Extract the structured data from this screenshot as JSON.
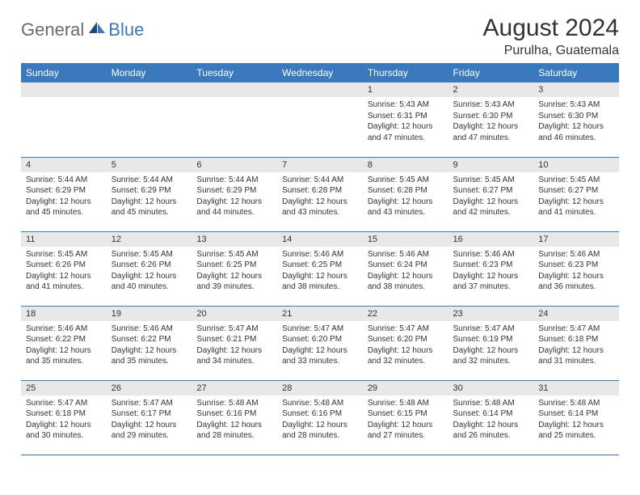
{
  "logo": {
    "text1": "General",
    "text2": "Blue"
  },
  "title": "August 2024",
  "location": "Purulha, Guatemala",
  "colors": {
    "header_bg": "#3a7abc",
    "band_bg": "#e8e8e8",
    "border": "#3a7abc",
    "text": "#333333",
    "logo_gray": "#6b6b6b"
  },
  "weekdays": [
    "Sunday",
    "Monday",
    "Tuesday",
    "Wednesday",
    "Thursday",
    "Friday",
    "Saturday"
  ],
  "weeks": [
    [
      {
        "empty": true
      },
      {
        "empty": true
      },
      {
        "empty": true
      },
      {
        "empty": true
      },
      {
        "day": "1",
        "sunrise": "Sunrise: 5:43 AM",
        "sunset": "Sunset: 6:31 PM",
        "daylight": "Daylight: 12 hours and 47 minutes."
      },
      {
        "day": "2",
        "sunrise": "Sunrise: 5:43 AM",
        "sunset": "Sunset: 6:30 PM",
        "daylight": "Daylight: 12 hours and 47 minutes."
      },
      {
        "day": "3",
        "sunrise": "Sunrise: 5:43 AM",
        "sunset": "Sunset: 6:30 PM",
        "daylight": "Daylight: 12 hours and 46 minutes."
      }
    ],
    [
      {
        "day": "4",
        "sunrise": "Sunrise: 5:44 AM",
        "sunset": "Sunset: 6:29 PM",
        "daylight": "Daylight: 12 hours and 45 minutes."
      },
      {
        "day": "5",
        "sunrise": "Sunrise: 5:44 AM",
        "sunset": "Sunset: 6:29 PM",
        "daylight": "Daylight: 12 hours and 45 minutes."
      },
      {
        "day": "6",
        "sunrise": "Sunrise: 5:44 AM",
        "sunset": "Sunset: 6:29 PM",
        "daylight": "Daylight: 12 hours and 44 minutes."
      },
      {
        "day": "7",
        "sunrise": "Sunrise: 5:44 AM",
        "sunset": "Sunset: 6:28 PM",
        "daylight": "Daylight: 12 hours and 43 minutes."
      },
      {
        "day": "8",
        "sunrise": "Sunrise: 5:45 AM",
        "sunset": "Sunset: 6:28 PM",
        "daylight": "Daylight: 12 hours and 43 minutes."
      },
      {
        "day": "9",
        "sunrise": "Sunrise: 5:45 AM",
        "sunset": "Sunset: 6:27 PM",
        "daylight": "Daylight: 12 hours and 42 minutes."
      },
      {
        "day": "10",
        "sunrise": "Sunrise: 5:45 AM",
        "sunset": "Sunset: 6:27 PM",
        "daylight": "Daylight: 12 hours and 41 minutes."
      }
    ],
    [
      {
        "day": "11",
        "sunrise": "Sunrise: 5:45 AM",
        "sunset": "Sunset: 6:26 PM",
        "daylight": "Daylight: 12 hours and 41 minutes."
      },
      {
        "day": "12",
        "sunrise": "Sunrise: 5:45 AM",
        "sunset": "Sunset: 6:26 PM",
        "daylight": "Daylight: 12 hours and 40 minutes."
      },
      {
        "day": "13",
        "sunrise": "Sunrise: 5:45 AM",
        "sunset": "Sunset: 6:25 PM",
        "daylight": "Daylight: 12 hours and 39 minutes."
      },
      {
        "day": "14",
        "sunrise": "Sunrise: 5:46 AM",
        "sunset": "Sunset: 6:25 PM",
        "daylight": "Daylight: 12 hours and 38 minutes."
      },
      {
        "day": "15",
        "sunrise": "Sunrise: 5:46 AM",
        "sunset": "Sunset: 6:24 PM",
        "daylight": "Daylight: 12 hours and 38 minutes."
      },
      {
        "day": "16",
        "sunrise": "Sunrise: 5:46 AM",
        "sunset": "Sunset: 6:23 PM",
        "daylight": "Daylight: 12 hours and 37 minutes."
      },
      {
        "day": "17",
        "sunrise": "Sunrise: 5:46 AM",
        "sunset": "Sunset: 6:23 PM",
        "daylight": "Daylight: 12 hours and 36 minutes."
      }
    ],
    [
      {
        "day": "18",
        "sunrise": "Sunrise: 5:46 AM",
        "sunset": "Sunset: 6:22 PM",
        "daylight": "Daylight: 12 hours and 35 minutes."
      },
      {
        "day": "19",
        "sunrise": "Sunrise: 5:46 AM",
        "sunset": "Sunset: 6:22 PM",
        "daylight": "Daylight: 12 hours and 35 minutes."
      },
      {
        "day": "20",
        "sunrise": "Sunrise: 5:47 AM",
        "sunset": "Sunset: 6:21 PM",
        "daylight": "Daylight: 12 hours and 34 minutes."
      },
      {
        "day": "21",
        "sunrise": "Sunrise: 5:47 AM",
        "sunset": "Sunset: 6:20 PM",
        "daylight": "Daylight: 12 hours and 33 minutes."
      },
      {
        "day": "22",
        "sunrise": "Sunrise: 5:47 AM",
        "sunset": "Sunset: 6:20 PM",
        "daylight": "Daylight: 12 hours and 32 minutes."
      },
      {
        "day": "23",
        "sunrise": "Sunrise: 5:47 AM",
        "sunset": "Sunset: 6:19 PM",
        "daylight": "Daylight: 12 hours and 32 minutes."
      },
      {
        "day": "24",
        "sunrise": "Sunrise: 5:47 AM",
        "sunset": "Sunset: 6:18 PM",
        "daylight": "Daylight: 12 hours and 31 minutes."
      }
    ],
    [
      {
        "day": "25",
        "sunrise": "Sunrise: 5:47 AM",
        "sunset": "Sunset: 6:18 PM",
        "daylight": "Daylight: 12 hours and 30 minutes."
      },
      {
        "day": "26",
        "sunrise": "Sunrise: 5:47 AM",
        "sunset": "Sunset: 6:17 PM",
        "daylight": "Daylight: 12 hours and 29 minutes."
      },
      {
        "day": "27",
        "sunrise": "Sunrise: 5:48 AM",
        "sunset": "Sunset: 6:16 PM",
        "daylight": "Daylight: 12 hours and 28 minutes."
      },
      {
        "day": "28",
        "sunrise": "Sunrise: 5:48 AM",
        "sunset": "Sunset: 6:16 PM",
        "daylight": "Daylight: 12 hours and 28 minutes."
      },
      {
        "day": "29",
        "sunrise": "Sunrise: 5:48 AM",
        "sunset": "Sunset: 6:15 PM",
        "daylight": "Daylight: 12 hours and 27 minutes."
      },
      {
        "day": "30",
        "sunrise": "Sunrise: 5:48 AM",
        "sunset": "Sunset: 6:14 PM",
        "daylight": "Daylight: 12 hours and 26 minutes."
      },
      {
        "day": "31",
        "sunrise": "Sunrise: 5:48 AM",
        "sunset": "Sunset: 6:14 PM",
        "daylight": "Daylight: 12 hours and 25 minutes."
      }
    ]
  ]
}
